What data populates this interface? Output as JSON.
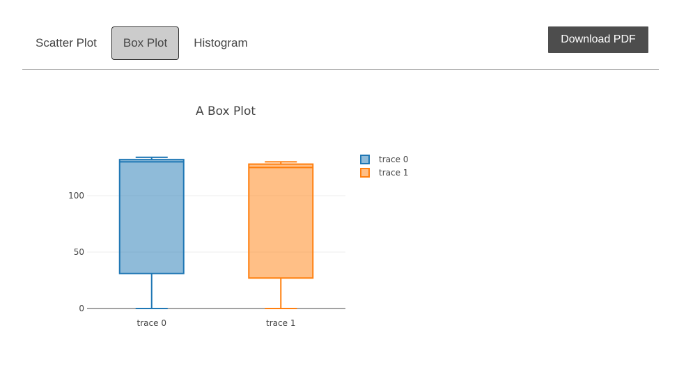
{
  "tabs": [
    {
      "label": "Scatter Plot",
      "active": false
    },
    {
      "label": "Box Plot",
      "active": true
    },
    {
      "label": "Histogram",
      "active": false
    }
  ],
  "download_label": "Download PDF",
  "chart_data": {
    "type": "box",
    "title": "A Box Plot",
    "xlabel": "",
    "ylabel": "",
    "ylim": [
      0,
      140
    ],
    "y_ticks": [
      0,
      50,
      100
    ],
    "grid": true,
    "legend_position": "right",
    "categories": [
      "trace 0",
      "trace 1"
    ],
    "series": [
      {
        "name": "trace 0",
        "color": "#1f77b4",
        "min": 0,
        "q1": 31,
        "median": 130,
        "q3": 132,
        "max": 134
      },
      {
        "name": "trace 1",
        "color": "#ff7f0e",
        "min": 0,
        "q1": 27,
        "median": 125,
        "q3": 128,
        "max": 130
      }
    ]
  }
}
